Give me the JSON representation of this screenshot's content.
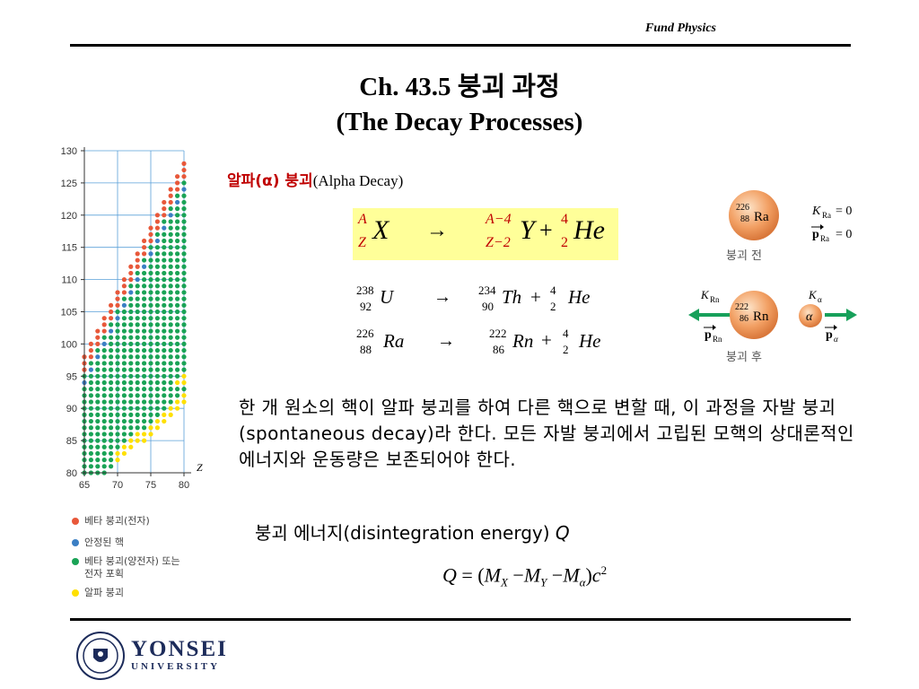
{
  "header": {
    "course": "Fund Physics"
  },
  "title": {
    "line1": "Ch. 43.5 붕괴 과정",
    "line2": "(The Decay Processes)"
  },
  "alpha": {
    "label_ko": "알파(α) 붕괴",
    "label_en": "(Alpha Decay)"
  },
  "equation_general": {
    "A": "A",
    "Z": "Z",
    "X": "X",
    "arrow": "→",
    "A4": "A−4",
    "Z2": "Z−2",
    "Y": "Y",
    "plus": "+",
    "four": "4",
    "two": "2",
    "He": "He"
  },
  "examples": [
    {
      "mass1": "238",
      "z1": "92",
      "el1": "U",
      "mass2": "234",
      "z2": "90",
      "el2": "Th",
      "he_mass": "4",
      "he_z": "2",
      "he": "He",
      "arrow": "→",
      "plus": "+"
    },
    {
      "mass1": "226",
      "z1": "88",
      "el1": "Ra",
      "mass2": "222",
      "z2": "86",
      "el2": "Rn",
      "he_mass": "4",
      "he_z": "2",
      "he": "He",
      "arrow": "→",
      "plus": "+"
    }
  ],
  "diagram": {
    "before": {
      "mass": "226",
      "z": "88",
      "symbol": "Ra",
      "caption": "붕괴 전",
      "k_label": "K",
      "k_sub": "Ra",
      "k_value": "= 0",
      "p_label": "p",
      "p_sub": "Ra",
      "p_value": "= 0"
    },
    "after": {
      "rn_mass": "222",
      "rn_z": "86",
      "rn_symbol": "Rn",
      "alpha_symbol": "α",
      "caption": "붕괴 후",
      "k_rn": "K",
      "k_rn_sub": "Rn",
      "k_alpha": "K",
      "k_alpha_sub": "α",
      "p_rn": "p",
      "p_rn_sub": "Rn",
      "p_alpha": "p",
      "p_alpha_sub": "α"
    }
  },
  "paragraph": "한 개 원소의 핵이 알파 붕괴를 하여 다른 핵으로 변할 때, 이 과정을 자발 붕괴(spontaneous decay)라 한다. 모든 자발 붕괴에서 고립된 모핵의 상대론적인 에너지와 운동량은 보존되어야 한다.",
  "energy_line": {
    "text": "붕괴 에너지(disintegration energy) ",
    "q": "Q"
  },
  "q_equation": {
    "Q": "Q",
    "eq": "= (",
    "M": "M",
    "X": "X",
    "minus": "−",
    "Y": "Y",
    "alpha": "α",
    "close": ")",
    "c": "c",
    "sq": "2"
  },
  "chart_data": {
    "type": "scatter",
    "title": "",
    "xlabel": "Z",
    "ylabel": "",
    "xlim": [
      65,
      80
    ],
    "ylim": [
      80,
      130
    ],
    "x_ticks": [
      "65",
      "70",
      "75",
      "80"
    ],
    "y_ticks": [
      "80",
      "85",
      "90",
      "95",
      "100",
      "105",
      "110",
      "115",
      "120",
      "125",
      "130"
    ],
    "grid": true,
    "series": [
      {
        "name": "베타 붕괴(전자)",
        "color": "#e8583a"
      },
      {
        "name": "안정된 핵",
        "color": "#3b7fc4"
      },
      {
        "name": "베타 붕괴(양전자) 또는 전자 포획",
        "color": "#1aa356"
      },
      {
        "name": "알파 붕괴",
        "color": "#ffe000"
      }
    ]
  },
  "legend_lines": {
    "green_line2": "전자 포획"
  },
  "footer": {
    "name": "YONSEI",
    "sub": "UNIVERSITY"
  }
}
